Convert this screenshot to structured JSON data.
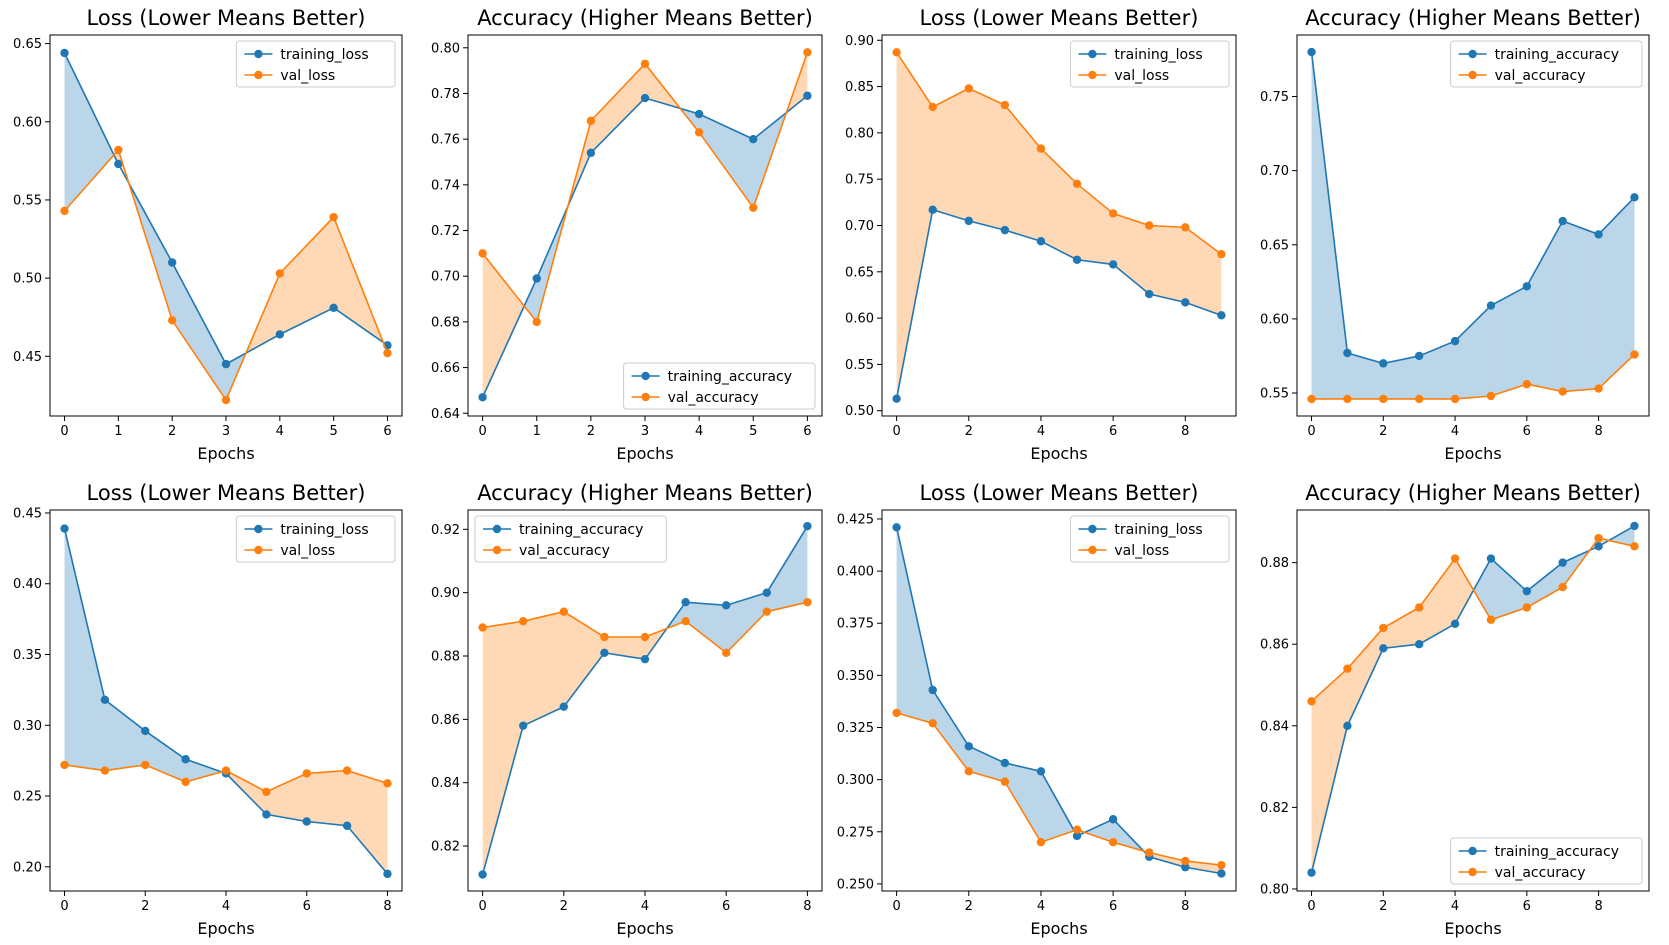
{
  "colors": {
    "training": "#1f77b4",
    "validation": "#ff7f0e",
    "fill_training": "#1f77b4",
    "fill_validation": "#ff7f0e"
  },
  "chart_data": [
    {
      "type": "line",
      "title": "Loss (Lower Means Better)",
      "xlabel": "Epochs",
      "ylabel": "",
      "x": [
        0,
        1,
        2,
        3,
        4,
        5,
        6
      ],
      "xticks": [
        0,
        1,
        2,
        3,
        4,
        5,
        6
      ],
      "yticks": [
        0.45,
        0.5,
        0.55,
        0.6,
        0.65
      ],
      "ylim": [
        0.4118,
        0.6555
      ],
      "ytick_decimals": 2,
      "legend_position": "upper-right",
      "grid": false,
      "fill_between": true,
      "series": [
        {
          "name": "training_loss",
          "values": [
            0.644,
            0.573,
            0.51,
            0.445,
            0.464,
            0.481,
            0.457
          ]
        },
        {
          "name": "val_loss",
          "values": [
            0.543,
            0.582,
            0.473,
            0.422,
            0.503,
            0.539,
            0.452
          ]
        }
      ]
    },
    {
      "type": "line",
      "title": "Accuracy (Higher Means Better)",
      "xlabel": "Epochs",
      "ylabel": "",
      "x": [
        0,
        1,
        2,
        3,
        4,
        5,
        6
      ],
      "xticks": [
        0,
        1,
        2,
        3,
        4,
        5,
        6
      ],
      "yticks": [
        0.64,
        0.66,
        0.68,
        0.7,
        0.72,
        0.74,
        0.76,
        0.78,
        0.8
      ],
      "ylim": [
        0.6388,
        0.8056
      ],
      "ytick_decimals": 2,
      "legend_position": "lower-right",
      "grid": false,
      "fill_between": true,
      "series": [
        {
          "name": "training_accuracy",
          "values": [
            0.647,
            0.699,
            0.754,
            0.778,
            0.771,
            0.76,
            0.779
          ]
        },
        {
          "name": "val_accuracy",
          "values": [
            0.71,
            0.68,
            0.768,
            0.793,
            0.763,
            0.73,
            0.798
          ]
        }
      ]
    },
    {
      "type": "line",
      "title": "Loss (Lower Means Better)",
      "xlabel": "Epochs",
      "ylabel": "",
      "x": [
        0,
        1,
        2,
        3,
        4,
        5,
        6,
        7,
        8,
        9
      ],
      "xticks": [
        0,
        2,
        4,
        6,
        8
      ],
      "yticks": [
        0.5,
        0.55,
        0.6,
        0.65,
        0.7,
        0.75,
        0.8,
        0.85,
        0.9
      ],
      "ylim": [
        0.4943,
        0.9057
      ],
      "ytick_decimals": 2,
      "legend_position": "upper-right",
      "grid": false,
      "fill_between": true,
      "series": [
        {
          "name": "training_loss",
          "values": [
            0.513,
            0.717,
            0.705,
            0.695,
            0.683,
            0.663,
            0.658,
            0.626,
            0.617,
            0.603
          ]
        },
        {
          "name": "val_loss",
          "values": [
            0.887,
            0.828,
            0.848,
            0.83,
            0.783,
            0.745,
            0.713,
            0.7,
            0.698,
            0.669
          ]
        }
      ]
    },
    {
      "type": "line",
      "title": "Accuracy (Higher Means Better)",
      "xlabel": "Epochs",
      "ylabel": "",
      "x": [
        0,
        1,
        2,
        3,
        4,
        5,
        6,
        7,
        8,
        9
      ],
      "xticks": [
        0,
        2,
        4,
        6,
        8
      ],
      "yticks": [
        0.55,
        0.6,
        0.65,
        0.7,
        0.75
      ],
      "ylim": [
        0.5345,
        0.7915
      ],
      "ytick_decimals": 2,
      "legend_position": "upper-right",
      "grid": false,
      "fill_between": true,
      "series": [
        {
          "name": "training_accuracy",
          "values": [
            0.78,
            0.577,
            0.57,
            0.575,
            0.585,
            0.609,
            0.622,
            0.666,
            0.657,
            0.682
          ]
        },
        {
          "name": "val_accuracy",
          "values": [
            0.546,
            0.546,
            0.546,
            0.546,
            0.546,
            0.548,
            0.556,
            0.551,
            0.553,
            0.576
          ]
        }
      ]
    },
    {
      "type": "line",
      "title": "Loss (Lower Means Better)",
      "xlabel": "Epochs",
      "ylabel": "",
      "x": [
        0,
        1,
        2,
        3,
        4,
        5,
        6,
        7,
        8
      ],
      "xticks": [
        0,
        2,
        4,
        6,
        8
      ],
      "yticks": [
        0.2,
        0.25,
        0.3,
        0.35,
        0.4,
        0.45
      ],
      "ylim": [
        0.1829,
        0.4521
      ],
      "ytick_decimals": 2,
      "legend_position": "upper-right",
      "grid": false,
      "fill_between": true,
      "series": [
        {
          "name": "training_loss",
          "values": [
            0.439,
            0.318,
            0.296,
            0.276,
            0.266,
            0.237,
            0.232,
            0.229,
            0.195
          ]
        },
        {
          "name": "val_loss",
          "values": [
            0.272,
            0.268,
            0.272,
            0.26,
            0.268,
            0.253,
            0.266,
            0.268,
            0.259
          ]
        }
      ]
    },
    {
      "type": "line",
      "title": "Accuracy (Higher Means Better)",
      "xlabel": "Epochs",
      "ylabel": "",
      "x": [
        0,
        1,
        2,
        3,
        4,
        5,
        6,
        7,
        8
      ],
      "xticks": [
        0,
        2,
        4,
        6,
        8
      ],
      "yticks": [
        0.82,
        0.84,
        0.86,
        0.88,
        0.9,
        0.92
      ],
      "ylim": [
        0.8058,
        0.9261
      ],
      "ytick_decimals": 2,
      "legend_position": "upper-left",
      "grid": false,
      "fill_between": true,
      "series": [
        {
          "name": "training_accuracy",
          "values": [
            0.811,
            0.858,
            0.864,
            0.881,
            0.879,
            0.897,
            0.896,
            0.9,
            0.921
          ]
        },
        {
          "name": "val_accuracy",
          "values": [
            0.889,
            0.891,
            0.894,
            0.886,
            0.886,
            0.891,
            0.881,
            0.894,
            0.897
          ]
        }
      ]
    },
    {
      "type": "line",
      "title": "Loss (Lower Means Better)",
      "xlabel": "Epochs",
      "ylabel": "",
      "x": [
        0,
        1,
        2,
        3,
        4,
        5,
        6,
        7,
        8,
        9
      ],
      "xticks": [
        0,
        2,
        4,
        6,
        8
      ],
      "yticks": [
        0.25,
        0.275,
        0.3,
        0.325,
        0.35,
        0.375,
        0.4,
        0.425
      ],
      "ylim": [
        0.2466,
        0.4293
      ],
      "ytick_decimals": 3,
      "legend_position": "upper-right",
      "grid": false,
      "fill_between": true,
      "series": [
        {
          "name": "training_loss",
          "values": [
            0.421,
            0.343,
            0.316,
            0.308,
            0.304,
            0.273,
            0.281,
            0.263,
            0.258,
            0.255
          ]
        },
        {
          "name": "val_loss",
          "values": [
            0.332,
            0.327,
            0.304,
            0.299,
            0.27,
            0.276,
            0.27,
            0.265,
            0.261,
            0.259
          ]
        }
      ]
    },
    {
      "type": "line",
      "title": "Accuracy (Higher Means Better)",
      "xlabel": "Epochs",
      "ylabel": "",
      "x": [
        0,
        1,
        2,
        3,
        4,
        5,
        6,
        7,
        8,
        9
      ],
      "xticks": [
        0,
        2,
        4,
        6,
        8
      ],
      "yticks": [
        0.8,
        0.82,
        0.84,
        0.86,
        0.88
      ],
      "ylim": [
        0.7995,
        0.8929
      ],
      "ytick_decimals": 2,
      "legend_position": "lower-right",
      "grid": false,
      "fill_between": true,
      "series": [
        {
          "name": "training_accuracy",
          "values": [
            0.804,
            0.84,
            0.859,
            0.86,
            0.865,
            0.881,
            0.873,
            0.88,
            0.884,
            0.889
          ]
        },
        {
          "name": "val_accuracy",
          "values": [
            0.846,
            0.854,
            0.864,
            0.869,
            0.881,
            0.866,
            0.869,
            0.874,
            0.886,
            0.884
          ]
        }
      ]
    }
  ]
}
